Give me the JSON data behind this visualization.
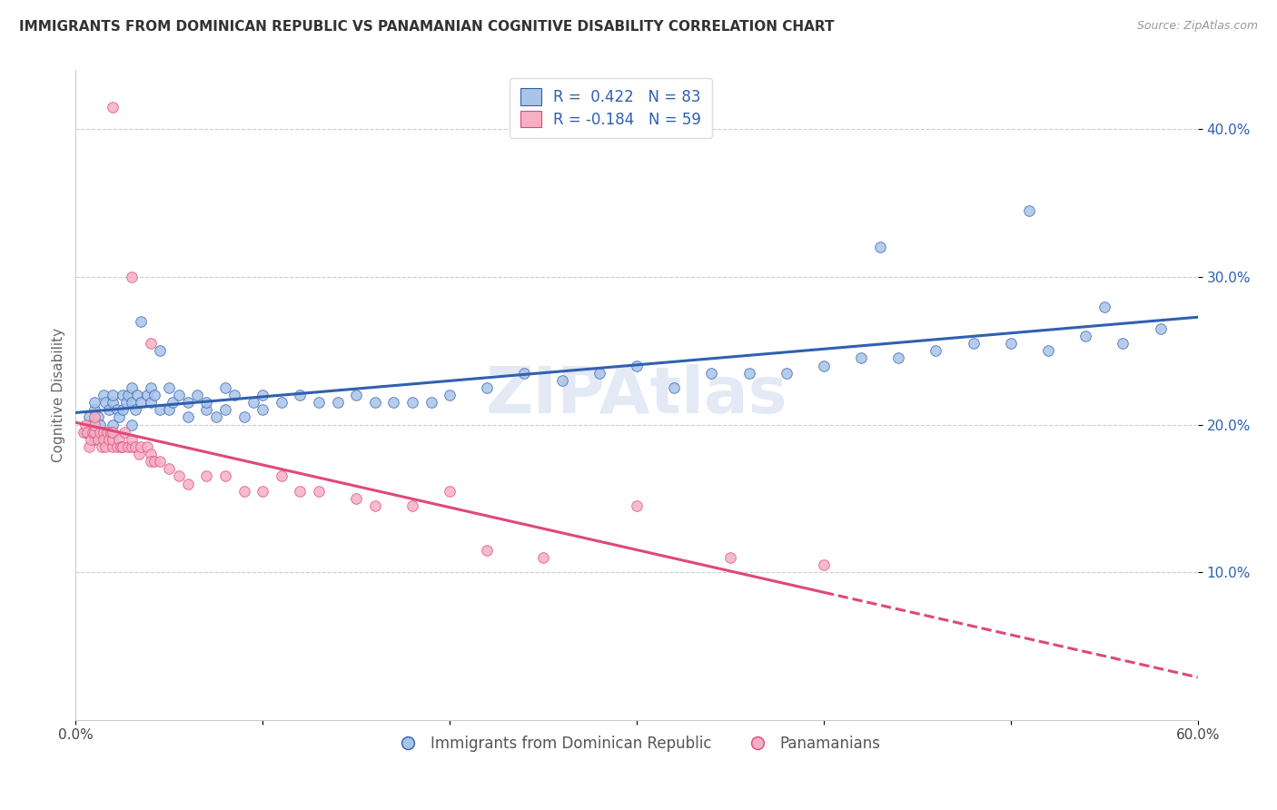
{
  "title": "IMMIGRANTS FROM DOMINICAN REPUBLIC VS PANAMANIAN COGNITIVE DISABILITY CORRELATION CHART",
  "source": "Source: ZipAtlas.com",
  "ylabel": "Cognitive Disability",
  "watermark": "ZIPAtlas",
  "xmin": 0.0,
  "xmax": 0.6,
  "ymin": 0.0,
  "ymax": 0.44,
  "yticks": [
    0.1,
    0.2,
    0.3,
    0.4
  ],
  "ytick_labels": [
    "10.0%",
    "20.0%",
    "30.0%",
    "40.0%"
  ],
  "xticks": [
    0.0,
    0.1,
    0.2,
    0.3,
    0.4,
    0.5,
    0.6
  ],
  "xtick_labels": [
    "0.0%",
    "",
    "",
    "",
    "",
    "",
    "60.0%"
  ],
  "blue_color": "#a8c4e8",
  "pink_color": "#f5b0c5",
  "blue_line_color": "#3060b0",
  "pink_line_color": "#e04878",
  "blue_R": 0.422,
  "blue_N": 83,
  "pink_R": -0.184,
  "pink_N": 59,
  "legend_label_blue": "Immigrants from Dominican Republic",
  "legend_label_pink": "Panamanians",
  "blue_points_x": [
    0.005,
    0.007,
    0.008,
    0.01,
    0.01,
    0.01,
    0.012,
    0.013,
    0.015,
    0.015,
    0.016,
    0.018,
    0.02,
    0.02,
    0.02,
    0.022,
    0.023,
    0.025,
    0.025,
    0.027,
    0.028,
    0.03,
    0.03,
    0.03,
    0.032,
    0.033,
    0.035,
    0.035,
    0.038,
    0.04,
    0.04,
    0.042,
    0.045,
    0.045,
    0.05,
    0.05,
    0.052,
    0.055,
    0.06,
    0.06,
    0.065,
    0.07,
    0.07,
    0.075,
    0.08,
    0.08,
    0.085,
    0.09,
    0.095,
    0.1,
    0.1,
    0.11,
    0.12,
    0.13,
    0.14,
    0.15,
    0.16,
    0.17,
    0.18,
    0.19,
    0.2,
    0.22,
    0.24,
    0.26,
    0.28,
    0.3,
    0.32,
    0.34,
    0.36,
    0.38,
    0.4,
    0.42,
    0.44,
    0.46,
    0.48,
    0.5,
    0.52,
    0.54,
    0.56,
    0.58,
    0.43,
    0.51,
    0.55
  ],
  "blue_points_y": [
    0.195,
    0.205,
    0.2,
    0.19,
    0.21,
    0.215,
    0.205,
    0.2,
    0.195,
    0.22,
    0.215,
    0.21,
    0.2,
    0.215,
    0.22,
    0.21,
    0.205,
    0.21,
    0.22,
    0.215,
    0.22,
    0.215,
    0.2,
    0.225,
    0.21,
    0.22,
    0.215,
    0.27,
    0.22,
    0.215,
    0.225,
    0.22,
    0.21,
    0.25,
    0.21,
    0.225,
    0.215,
    0.22,
    0.205,
    0.215,
    0.22,
    0.21,
    0.215,
    0.205,
    0.21,
    0.225,
    0.22,
    0.205,
    0.215,
    0.21,
    0.22,
    0.215,
    0.22,
    0.215,
    0.215,
    0.22,
    0.215,
    0.215,
    0.215,
    0.215,
    0.22,
    0.225,
    0.235,
    0.23,
    0.235,
    0.24,
    0.225,
    0.235,
    0.235,
    0.235,
    0.24,
    0.245,
    0.245,
    0.25,
    0.255,
    0.255,
    0.25,
    0.26,
    0.255,
    0.265,
    0.32,
    0.345,
    0.28
  ],
  "pink_points_x": [
    0.004,
    0.005,
    0.006,
    0.007,
    0.008,
    0.009,
    0.01,
    0.01,
    0.01,
    0.012,
    0.013,
    0.014,
    0.015,
    0.015,
    0.016,
    0.017,
    0.018,
    0.019,
    0.02,
    0.02,
    0.02,
    0.022,
    0.023,
    0.024,
    0.025,
    0.026,
    0.028,
    0.03,
    0.03,
    0.032,
    0.034,
    0.035,
    0.038,
    0.04,
    0.04,
    0.042,
    0.045,
    0.05,
    0.055,
    0.06,
    0.07,
    0.08,
    0.09,
    0.1,
    0.11,
    0.12,
    0.13,
    0.15,
    0.16,
    0.18,
    0.2,
    0.22,
    0.25,
    0.3,
    0.35,
    0.4,
    0.03,
    0.02,
    0.04
  ],
  "pink_points_y": [
    0.195,
    0.2,
    0.195,
    0.185,
    0.19,
    0.195,
    0.195,
    0.2,
    0.205,
    0.19,
    0.195,
    0.185,
    0.195,
    0.19,
    0.185,
    0.195,
    0.19,
    0.195,
    0.185,
    0.19,
    0.195,
    0.185,
    0.19,
    0.185,
    0.185,
    0.195,
    0.185,
    0.185,
    0.19,
    0.185,
    0.18,
    0.185,
    0.185,
    0.18,
    0.175,
    0.175,
    0.175,
    0.17,
    0.165,
    0.16,
    0.165,
    0.165,
    0.155,
    0.155,
    0.165,
    0.155,
    0.155,
    0.15,
    0.145,
    0.145,
    0.155,
    0.115,
    0.11,
    0.145,
    0.11,
    0.105,
    0.3,
    0.415,
    0.255
  ]
}
